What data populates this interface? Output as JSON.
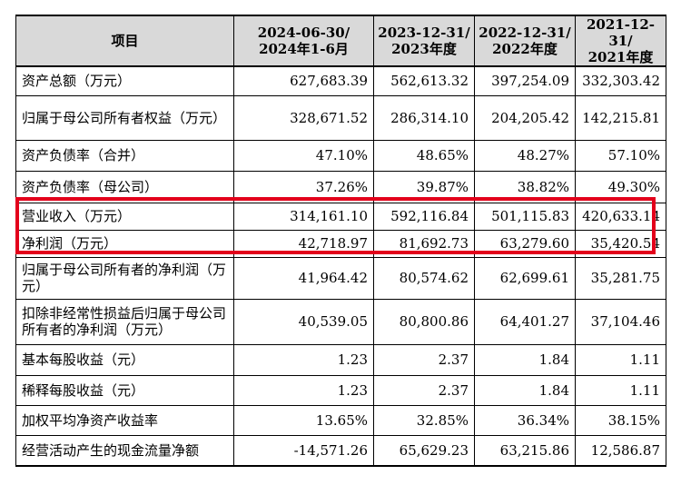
{
  "table": {
    "columns": [
      {
        "l1": "项目",
        "l2": ""
      },
      {
        "l1": "2024-06-30/",
        "l2": "2024年1-6月"
      },
      {
        "l1": "2023-12-31/",
        "l2": "2023年度"
      },
      {
        "l1": "2022-12-31/",
        "l2": "2022年度"
      },
      {
        "l1": "2021-12-31/",
        "l2": "2021年度"
      }
    ],
    "rows": [
      {
        "label": "资产总额（万元）",
        "v": [
          "627,683.39",
          "562,613.32",
          "397,254.09",
          "332,303.42"
        ]
      },
      {
        "label": "归属于母公司所有者权益（万元）",
        "v": [
          "328,671.52",
          "286,314.10",
          "204,205.42",
          "142,215.81"
        ]
      },
      {
        "label": "资产负债率（合并）",
        "v": [
          "47.10%",
          "48.65%",
          "48.27%",
          "57.10%"
        ]
      },
      {
        "label": "资产负债率（母公司）",
        "v": [
          "37.26%",
          "39.87%",
          "38.82%",
          "49.30%"
        ]
      },
      {
        "label": "营业收入（万元）",
        "v": [
          "314,161.10",
          "592,116.84",
          "501,115.83",
          "420,633.14"
        ]
      },
      {
        "label": "净利润（万元）",
        "v": [
          "42,718.97",
          "81,692.73",
          "63,279.60",
          "35,420.54"
        ]
      },
      {
        "label": "归属于母公司所有者的净利润（万元）",
        "v": [
          "41,964.42",
          "80,574.62",
          "62,699.61",
          "35,281.75"
        ]
      },
      {
        "label": "扣除非经常性损益后归属于母公司所有者的净利润（万元）",
        "v": [
          "40,539.05",
          "80,800.86",
          "64,401.27",
          "37,104.46"
        ]
      },
      {
        "label": "基本每股收益（元）",
        "v": [
          "1.23",
          "2.37",
          "1.84",
          "1.11"
        ]
      },
      {
        "label": "稀释每股收益（元）",
        "v": [
          "1.23",
          "2.37",
          "1.84",
          "1.11"
        ]
      },
      {
        "label": "加权平均净资产收益率",
        "v": [
          "13.65%",
          "32.85%",
          "36.34%",
          "38.15%"
        ]
      },
      {
        "label": "经营活动产生的现金流量净额",
        "v": [
          "-14,571.26",
          "65,629.23",
          "63,215.86",
          "12,586.87"
        ]
      }
    ]
  },
  "highlight": {
    "color": "#e3001b",
    "rows": [
      "营业收入（万元）",
      "净利润（万元）"
    ]
  }
}
